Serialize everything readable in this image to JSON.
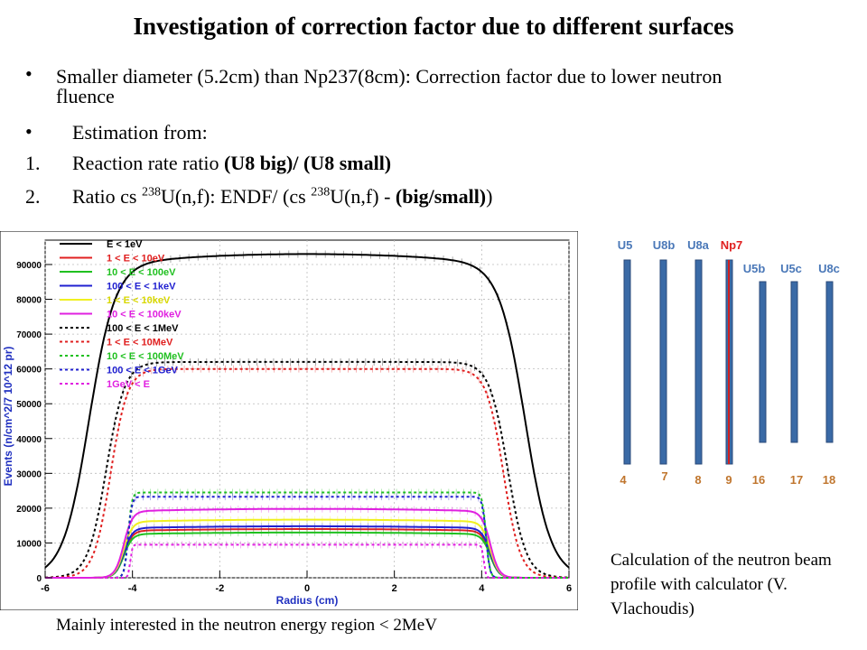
{
  "title": "Investigation of correction factor due to different surfaces",
  "bullets": [
    "Smaller diameter (5.2cm) than Np237(8cm): Correction factor due to lower neutron fluence",
    "Estimation from:"
  ],
  "numbered": [
    {
      "n": "1.",
      "pre": "Reaction rate ratio ",
      "bold": "(U8 big)/ (U8 small)"
    },
    {
      "n": "2.",
      "pre1": "Ratio cs ",
      "sup1": "238",
      "mid": "U(n,f):     ENDF/ (cs ",
      "sup2": "238",
      "post": "U(n,f) - ",
      "bold": "(big/small)",
      "tail": ")"
    }
  ],
  "caption": "Calculation of the neutron beam profile with calculator (V. Vlachoudis)",
  "footnote": "Mainly interested in the neutron energy region < 2MeV",
  "beam_diagram": {
    "top_labels": [
      {
        "text": "U5",
        "color": "#4a78b8"
      },
      {
        "text": "U8b",
        "color": "#4a78b8"
      },
      {
        "text": "U8a",
        "color": "#4a78b8"
      },
      {
        "text": "Np7",
        "color": "#e02020"
      }
    ],
    "mid_labels": [
      {
        "text": "U5b",
        "color": "#4a78b8"
      },
      {
        "text": "U5c",
        "color": "#4a78b8"
      },
      {
        "text": "U8c",
        "color": "#4a78b8"
      }
    ],
    "bottom_labels": [
      {
        "text": "4",
        "color": "#c0762e"
      },
      {
        "text": "7",
        "color": "#c0762e"
      },
      {
        "text": "8",
        "color": "#c0762e"
      },
      {
        "text": "9",
        "color": "#c0762e"
      },
      {
        "text": "16",
        "color": "#c0762e"
      },
      {
        "text": "17",
        "color": "#c0762e"
      },
      {
        "text": "18",
        "color": "#c0762e"
      }
    ],
    "bar_color": "#3a6aa6",
    "np_color": "#d02020"
  },
  "chart_data": {
    "type": "line",
    "xlabel": "Radius (cm)",
    "ylabel": "Events (n/cm^2/7 10^12 pr)",
    "xlim": [
      -6,
      6
    ],
    "ylim": [
      0,
      97000
    ],
    "xticks": [
      -6,
      -4,
      -2,
      0,
      2,
      4,
      6
    ],
    "yticks": [
      0,
      10000,
      20000,
      30000,
      40000,
      50000,
      60000,
      70000,
      80000,
      90000
    ],
    "grid": true,
    "legend_position": "top-left",
    "series": [
      {
        "name": "E < 1eV",
        "color": "#000000",
        "dash": false,
        "plateau": 93000,
        "edge": 5.0,
        "soft": 0.85
      },
      {
        "name": "1 < E < 10eV",
        "color": "#e02020",
        "dash": false,
        "plateau": 14000,
        "edge": 4.2,
        "soft": 0.28
      },
      {
        "name": "10 < E < 100eV",
        "color": "#20c020",
        "dash": false,
        "plateau": 13000,
        "edge": 4.2,
        "soft": 0.28
      },
      {
        "name": "100 < E < 1keV",
        "color": "#2020d0",
        "dash": false,
        "plateau": 14800,
        "edge": 4.2,
        "soft": 0.28
      },
      {
        "name": "1 < E < 10keV",
        "color": "#f0f020",
        "dash": false,
        "plateau": 16700,
        "edge": 4.2,
        "soft": 0.28
      },
      {
        "name": "10 < E < 100keV",
        "color": "#e020e0",
        "dash": false,
        "plateau": 19800,
        "edge": 4.2,
        "soft": 0.28
      },
      {
        "name": "100 < E < 1MeV",
        "color": "#000000",
        "dash": true,
        "plateau": 62000,
        "edge": 4.6,
        "soft": 0.6
      },
      {
        "name": "1 < E < 10MeV",
        "color": "#e02020",
        "dash": true,
        "plateau": 60000,
        "edge": 4.5,
        "soft": 0.55
      },
      {
        "name": "10 < E < 100MeV",
        "color": "#20c020",
        "dash": true,
        "plateau": 24500,
        "edge": 4.1,
        "soft": 0.12
      },
      {
        "name": "100 < E < 1GeV",
        "color": "#2020d0",
        "dash": true,
        "plateau": 23300,
        "edge": 4.1,
        "soft": 0.12
      },
      {
        "name": "1GeV < E",
        "color": "#e020e0",
        "dash": true,
        "plateau": 9500,
        "edge": 4.05,
        "soft": 0.06
      }
    ]
  }
}
